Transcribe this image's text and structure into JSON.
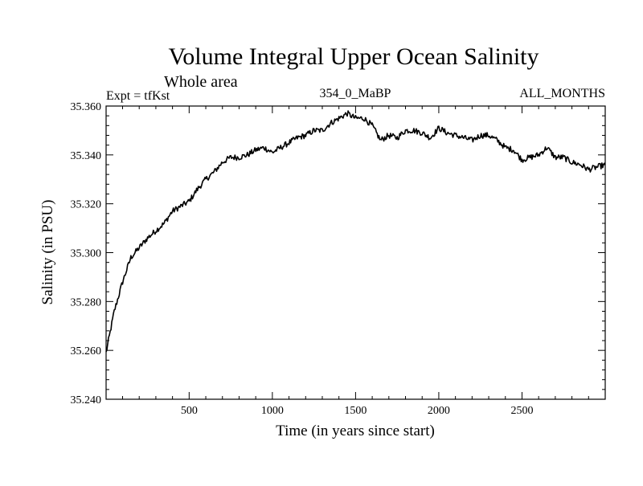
{
  "chart_data": {
    "type": "line",
    "title": "Volume Integral Upper Ocean Salinity",
    "subtitle": "Whole area",
    "annotations": {
      "experiment": "Expt = tfKst",
      "run": "354_0_MaBP",
      "period": "ALL_MONTHS"
    },
    "xlabel": "Time (in years since start)",
    "ylabel": "Salinity (in PSU)",
    "xlim": [
      1,
      3000
    ],
    "ylim": [
      35.24,
      35.36
    ],
    "x_ticks": [
      500,
      1000,
      1500,
      2000,
      2500
    ],
    "x_tick_labels": [
      "500",
      "1000",
      "1500",
      "2000",
      "2500"
    ],
    "y_ticks": [
      35.24,
      35.26,
      35.28,
      35.3,
      35.32,
      35.34,
      35.36
    ],
    "y_tick_labels": [
      "35.240",
      "35.260",
      "35.280",
      "35.300",
      "35.320",
      "35.340",
      "35.360"
    ],
    "grid": false,
    "series": [
      {
        "name": "salinity",
        "x": [
          1,
          50,
          100,
          150,
          200,
          250,
          300,
          350,
          400,
          450,
          500,
          550,
          600,
          650,
          700,
          750,
          800,
          850,
          900,
          950,
          1000,
          1050,
          1100,
          1150,
          1200,
          1250,
          1300,
          1350,
          1400,
          1450,
          1500,
          1550,
          1600,
          1650,
          1700,
          1750,
          1800,
          1850,
          1900,
          1950,
          2000,
          2050,
          2100,
          2150,
          2200,
          2250,
          2300,
          2350,
          2400,
          2450,
          2500,
          2550,
          2600,
          2650,
          2700,
          2750,
          2800,
          2850,
          2900,
          2950,
          3000
        ],
        "values": [
          35.259,
          35.276,
          35.288,
          35.298,
          35.302,
          35.306,
          35.309,
          35.312,
          35.317,
          35.319,
          35.321,
          35.326,
          35.33,
          35.333,
          35.337,
          35.339,
          35.339,
          35.34,
          35.342,
          35.343,
          35.341,
          35.343,
          35.345,
          35.347,
          35.348,
          35.35,
          35.35,
          35.353,
          35.355,
          35.357,
          35.355,
          35.355,
          35.352,
          35.346,
          35.348,
          35.347,
          35.35,
          35.35,
          35.349,
          35.347,
          35.351,
          35.349,
          35.348,
          35.347,
          35.346,
          35.348,
          35.348,
          35.346,
          35.343,
          35.342,
          35.338,
          35.339,
          35.34,
          35.343,
          35.339,
          35.339,
          35.337,
          35.336,
          35.334,
          35.335,
          35.336
        ]
      }
    ]
  }
}
